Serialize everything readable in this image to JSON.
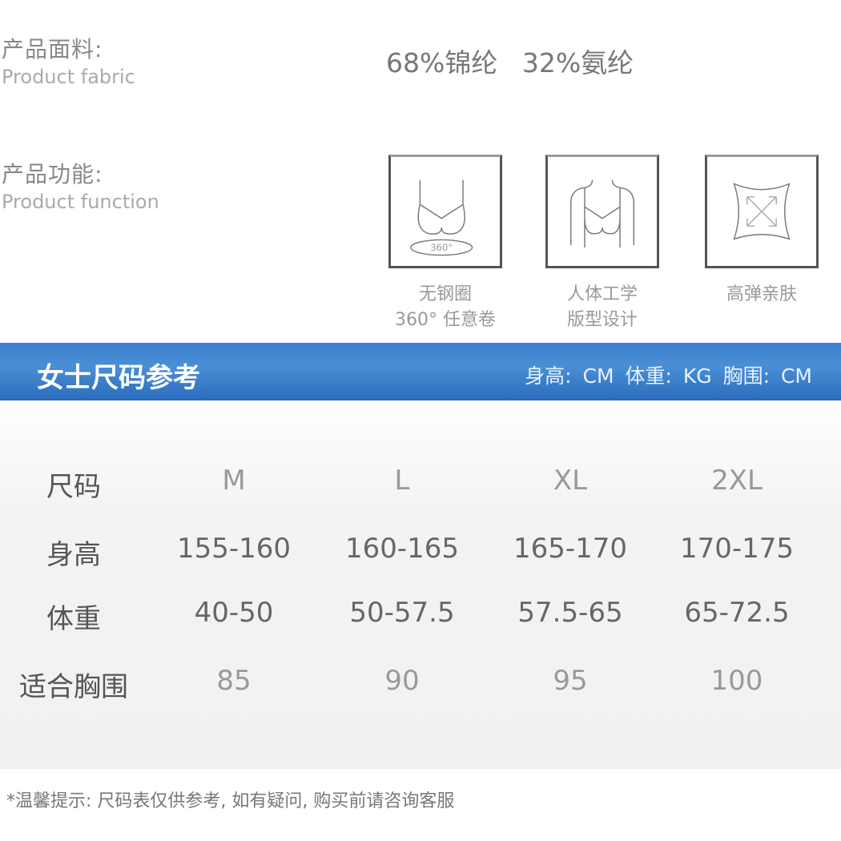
{
  "fabric": {
    "label_cn": "产品面料:",
    "label_en": "Product fabric",
    "value": "68%锦纶 32%氨纶"
  },
  "function": {
    "label_cn": "产品功能:",
    "label_en": "Product function",
    "features": [
      {
        "icon": "wireless-bra-360-icon",
        "badge": "360°",
        "line1": "无钢圈",
        "line2": "360° 任意卷"
      },
      {
        "icon": "ergonomic-body-icon",
        "line1": "人体工学",
        "line2": "版型设计"
      },
      {
        "icon": "high-stretch-icon",
        "line1": "高弹亲肤",
        "line2": ""
      }
    ]
  },
  "size_chart": {
    "title": "女士尺码参考",
    "units": "身高: CM  体重: KG  胸围: CM",
    "band_color": "#3a7fcc",
    "rows": [
      {
        "label": "尺码",
        "values": [
          "M",
          "L",
          "XL",
          "2XL"
        ]
      },
      {
        "label": "身高",
        "values": [
          "155-160",
          "160-165",
          "165-170",
          "170-175"
        ]
      },
      {
        "label": "体重",
        "values": [
          "40-50",
          "50-57.5",
          "57.5-65",
          "65-72.5"
        ]
      },
      {
        "label": "适合胸围",
        "values": [
          "85",
          "90",
          "95",
          "100"
        ]
      }
    ]
  },
  "note": "*温馨提示: 尺码表仅供参考, 如有疑问, 购买前请咨询客服"
}
